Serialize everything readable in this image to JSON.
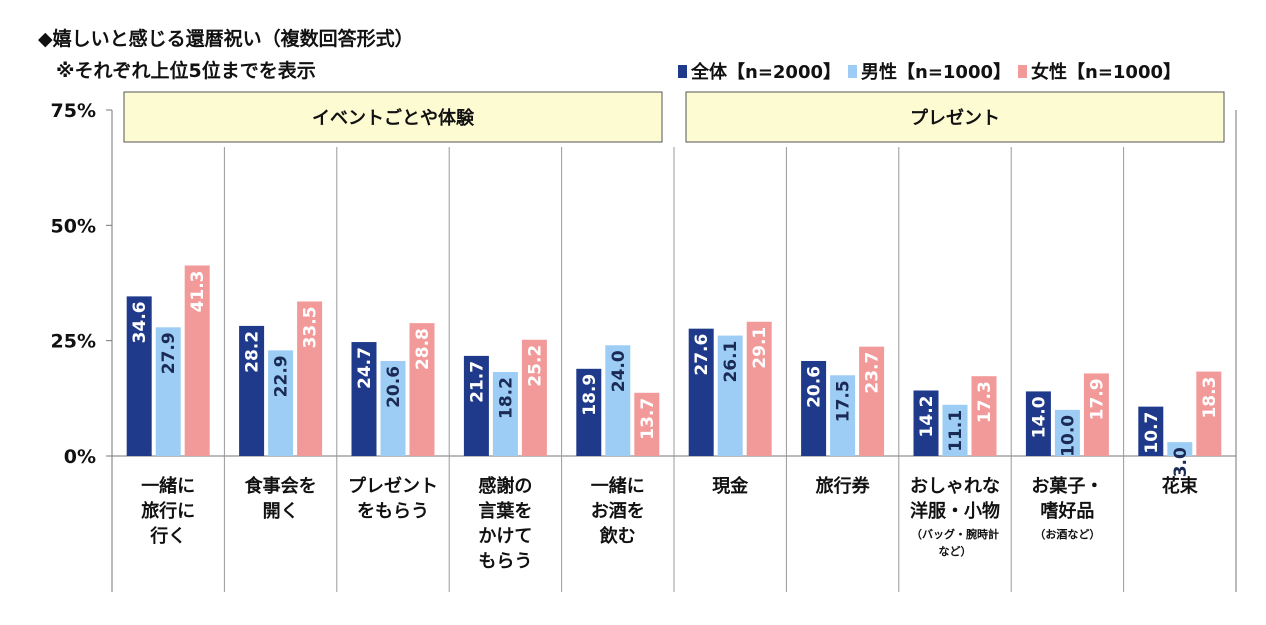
{
  "title": "◆嬉しいと感じる還暦祝い（複数回答形式）",
  "subtitle": "※それぞれ上位5位までを表示",
  "colors": {
    "all": "#1f3a8a",
    "male": "#9dcdf4",
    "female": "#f29a9a",
    "group_box": "#fdfbd2"
  },
  "legend": [
    {
      "label": "全体【n=2000】",
      "color": "#1f3a8a"
    },
    {
      "label": "男性【n=1000】",
      "color": "#9dcdf4"
    },
    {
      "label": "女性【n=1000】",
      "color": "#f29a9a"
    }
  ],
  "chart_data": {
    "type": "bar",
    "ylim": [
      0,
      75
    ],
    "yticks": [
      "0%",
      "25%",
      "50%",
      "75%"
    ],
    "ytick_values": [
      0,
      25,
      50,
      75
    ],
    "groups": [
      {
        "label": "イベントごとや体験",
        "categories": [
          0,
          4
        ]
      },
      {
        "label": "プレゼント",
        "categories": [
          5,
          9
        ]
      }
    ],
    "categories": [
      {
        "lines": [
          "一緒に",
          "旅行に",
          "行く"
        ],
        "note": []
      },
      {
        "lines": [
          "食事会を",
          "開く"
        ],
        "note": []
      },
      {
        "lines": [
          "プレゼント",
          "をもらう"
        ],
        "note": []
      },
      {
        "lines": [
          "感謝の",
          "言葉を",
          "かけて",
          "もらう"
        ],
        "note": []
      },
      {
        "lines": [
          "一緒に",
          "お酒を",
          "飲む"
        ],
        "note": []
      },
      {
        "lines": [
          "現金"
        ],
        "note": []
      },
      {
        "lines": [
          "旅行券"
        ],
        "note": []
      },
      {
        "lines": [
          "おしゃれな",
          "洋服・小物"
        ],
        "note": [
          "（バッグ・腕時計",
          "など）"
        ]
      },
      {
        "lines": [
          "お菓子・",
          "嗜好品"
        ],
        "note": [
          "（お酒など）"
        ]
      },
      {
        "lines": [
          "花束"
        ],
        "note": []
      }
    ],
    "series": [
      {
        "name": "全体【n=2000】",
        "values": [
          34.6,
          28.2,
          24.7,
          21.7,
          18.9,
          27.6,
          20.6,
          14.2,
          14.0,
          10.7
        ]
      },
      {
        "name": "男性【n=1000】",
        "values": [
          27.9,
          22.9,
          20.6,
          18.2,
          24.0,
          26.1,
          17.5,
          11.1,
          10.0,
          3.0
        ]
      },
      {
        "name": "女性【n=1000】",
        "values": [
          41.3,
          33.5,
          28.8,
          25.2,
          13.7,
          29.1,
          23.7,
          17.3,
          17.9,
          18.3
        ]
      }
    ],
    "value_labels": [
      [
        "34.6",
        "28.2",
        "24.7",
        "21.7",
        "18.9",
        "27.6",
        "20.6",
        "14.2",
        "14.0",
        "10.7"
      ],
      [
        "27.9",
        "22.9",
        "20.6",
        "18.2",
        "24.0",
        "26.1",
        "17.5",
        "11.1",
        "10.0",
        "3.0"
      ],
      [
        "41.3",
        "33.5",
        "28.8",
        "25.2",
        "13.7",
        "29.1",
        "23.7",
        "17.3",
        "17.9",
        "18.3"
      ]
    ]
  }
}
